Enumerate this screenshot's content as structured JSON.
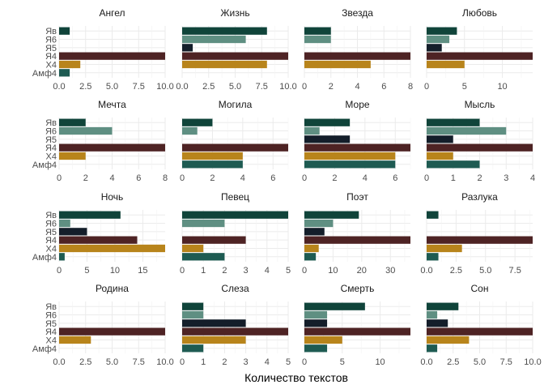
{
  "chart_data": {
    "type": "bar",
    "orientation": "horizontal",
    "facet_layout": "4x4",
    "x_axis_title": "Количество текстов",
    "categories": [
      "Амф4",
      "Х4",
      "Я4",
      "Я5",
      "Я6",
      "Яв"
    ],
    "category_colors": {
      "Амф4": "#1E5B52",
      "Х4": "#B8841B",
      "Я4": "#4E2324",
      "Я5": "#141E2A",
      "Я6": "#5F8F82",
      "Яв": "#10443A"
    },
    "panels": [
      {
        "title": "Ангел",
        "xlim": [
          0,
          10
        ],
        "ticks": [
          0,
          2.5,
          5,
          7.5,
          10
        ],
        "tick_labels": [
          "0.0",
          "2.5",
          "5.0",
          "7.5",
          "10.0"
        ],
        "values": {
          "Амф4": 1,
          "Х4": 2,
          "Я4": 10,
          "Я5": 0,
          "Я6": 0,
          "Яв": 1
        }
      },
      {
        "title": "Жизнь",
        "xlim": [
          0,
          10
        ],
        "ticks": [
          0,
          2.5,
          5,
          7.5,
          10
        ],
        "tick_labels": [
          "0.0",
          "2.5",
          "5.0",
          "7.5",
          "10.0"
        ],
        "values": {
          "Амф4": 0,
          "Х4": 8,
          "Я4": 10,
          "Я5": 1,
          "Я6": 6,
          "Яв": 8
        }
      },
      {
        "title": "Звезда",
        "xlim": [
          0,
          8
        ],
        "ticks": [
          0,
          2,
          4,
          6,
          8
        ],
        "tick_labels": [
          "0",
          "2",
          "4",
          "6",
          "8"
        ],
        "values": {
          "Амф4": 0,
          "Х4": 5,
          "Я4": 8,
          "Я5": 0,
          "Я6": 2,
          "Яв": 2
        }
      },
      {
        "title": "Любовь",
        "xlim": [
          0,
          14
        ],
        "ticks": [
          0,
          5,
          10
        ],
        "tick_labels": [
          "0",
          "5",
          "10"
        ],
        "values": {
          "Амф4": 0,
          "Х4": 5,
          "Я4": 14,
          "Я5": 2,
          "Я6": 3,
          "Яв": 4
        }
      },
      {
        "title": "Мечта",
        "xlim": [
          0,
          8
        ],
        "ticks": [
          0,
          2,
          4,
          6,
          8
        ],
        "tick_labels": [
          "0",
          "2",
          "4",
          "6",
          "8"
        ],
        "values": {
          "Амф4": 0,
          "Х4": 2,
          "Я4": 8,
          "Я5": 0,
          "Я6": 4,
          "Яв": 2
        }
      },
      {
        "title": "Могила",
        "xlim": [
          0,
          7
        ],
        "ticks": [
          0,
          2,
          4,
          6
        ],
        "tick_labels": [
          "0",
          "2",
          "4",
          "6"
        ],
        "values": {
          "Амф4": 4,
          "Х4": 4,
          "Я4": 7,
          "Я5": 0,
          "Я6": 1,
          "Яв": 2
        }
      },
      {
        "title": "Море",
        "xlim": [
          0,
          7
        ],
        "ticks": [
          0,
          2,
          4,
          6
        ],
        "tick_labels": [
          "0",
          "2",
          "4",
          "6"
        ],
        "values": {
          "Амф4": 6,
          "Х4": 6,
          "Я4": 7,
          "Я5": 3,
          "Я6": 1,
          "Яв": 3
        }
      },
      {
        "title": "Мысль",
        "xlim": [
          0,
          4
        ],
        "ticks": [
          0,
          1,
          2,
          3,
          4
        ],
        "tick_labels": [
          "0",
          "1",
          "2",
          "3",
          "4"
        ],
        "values": {
          "Амф4": 2,
          "Х4": 1,
          "Я4": 4,
          "Я5": 1,
          "Я6": 3,
          "Яв": 2
        }
      },
      {
        "title": "Ночь",
        "xlim": [
          0,
          19
        ],
        "ticks": [
          0,
          5,
          10,
          15
        ],
        "tick_labels": [
          "0",
          "5",
          "10",
          "15"
        ],
        "values": {
          "Амф4": 1,
          "Х4": 19,
          "Я4": 14,
          "Я5": 5,
          "Я6": 2,
          "Яв": 11
        }
      },
      {
        "title": "Певец",
        "xlim": [
          0,
          5
        ],
        "ticks": [
          0,
          1,
          2,
          3,
          4,
          5
        ],
        "tick_labels": [
          "0",
          "1",
          "2",
          "3",
          "4",
          "5"
        ],
        "values": {
          "Амф4": 2,
          "Х4": 1,
          "Я4": 3,
          "Я5": 0,
          "Я6": 2,
          "Яв": 5
        }
      },
      {
        "title": "Поэт",
        "xlim": [
          0,
          37
        ],
        "ticks": [
          0,
          10,
          20,
          30
        ],
        "tick_labels": [
          "0",
          "10",
          "20",
          "30"
        ],
        "values": {
          "Амф4": 4,
          "Х4": 5,
          "Я4": 37,
          "Я5": 7,
          "Я6": 10,
          "Яв": 19
        }
      },
      {
        "title": "Разлука",
        "xlim": [
          0,
          9
        ],
        "ticks": [
          0,
          2.5,
          5,
          7.5
        ],
        "tick_labels": [
          "0.0",
          "2.5",
          "5.0",
          "7.5"
        ],
        "values": {
          "Амф4": 1,
          "Х4": 3,
          "Я4": 9,
          "Я5": 0,
          "Я6": 0,
          "Яв": 1
        }
      },
      {
        "title": "Родина",
        "xlim": [
          0,
          10
        ],
        "ticks": [
          0,
          2.5,
          5,
          7.5,
          10
        ],
        "tick_labels": [
          "0.0",
          "2.5",
          "5.0",
          "7.5",
          "10.0"
        ],
        "values": {
          "Амф4": 0,
          "Х4": 3,
          "Я4": 10,
          "Я5": 0,
          "Я6": 0,
          "Яв": 0
        }
      },
      {
        "title": "Слеза",
        "xlim": [
          0,
          5
        ],
        "ticks": [
          0,
          1,
          2,
          3,
          4,
          5
        ],
        "tick_labels": [
          "0",
          "1",
          "2",
          "3",
          "4",
          "5"
        ],
        "values": {
          "Амф4": 1,
          "Х4": 3,
          "Я4": 5,
          "Я5": 3,
          "Я6": 1,
          "Яв": 1
        }
      },
      {
        "title": "Смерть",
        "xlim": [
          0,
          14
        ],
        "ticks": [
          0,
          5,
          10
        ],
        "tick_labels": [
          "0",
          "5",
          "10"
        ],
        "values": {
          "Амф4": 3,
          "Х4": 5,
          "Я4": 14,
          "Я5": 3,
          "Я6": 3,
          "Яв": 8
        }
      },
      {
        "title": "Сон",
        "xlim": [
          0,
          10
        ],
        "ticks": [
          0,
          2.5,
          5,
          7.5,
          10
        ],
        "tick_labels": [
          "0.0",
          "2.5",
          "5.0",
          "7.5",
          "10.0"
        ],
        "values": {
          "Амф4": 1,
          "Х4": 4,
          "Я4": 10,
          "Я5": 2,
          "Я6": 1,
          "Яв": 3
        }
      }
    ]
  }
}
